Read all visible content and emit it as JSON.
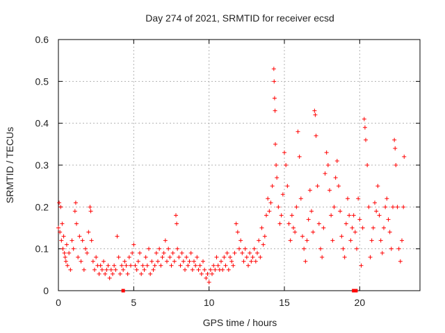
{
  "chart_data": {
    "type": "scatter",
    "title": "Day 274 of 2021, SRMTID for receiver ecsd",
    "xlabel": "GPS time / hours",
    "ylabel": "SRMTID / TECUs",
    "xlim": [
      0,
      24
    ],
    "ylim": [
      0,
      0.6
    ],
    "xticks": [
      0,
      5,
      10,
      15,
      20
    ],
    "yticks": [
      0,
      0.1,
      0.2,
      0.3,
      0.4,
      0.5,
      0.6
    ],
    "grid": true,
    "marker": "plus",
    "series": [
      {
        "name": "SRMTID",
        "color": "#ff0000",
        "points": [
          [
            0.0,
            0.15
          ],
          [
            0.05,
            0.21
          ],
          [
            0.1,
            0.14
          ],
          [
            0.15,
            0.2
          ],
          [
            0.2,
            0.12
          ],
          [
            0.25,
            0.16
          ],
          [
            0.3,
            0.1
          ],
          [
            0.35,
            0.13
          ],
          [
            0.4,
            0.09
          ],
          [
            0.45,
            0.08
          ],
          [
            0.5,
            0.07
          ],
          [
            0.55,
            0.11
          ],
          [
            0.6,
            0.06
          ],
          [
            0.7,
            0.09
          ],
          [
            0.8,
            0.05
          ],
          [
            0.9,
            0.12
          ],
          [
            1.0,
            0.1
          ],
          [
            1.1,
            0.19
          ],
          [
            1.15,
            0.21
          ],
          [
            1.2,
            0.16
          ],
          [
            1.3,
            0.08
          ],
          [
            1.4,
            0.13
          ],
          [
            1.5,
            0.07
          ],
          [
            1.6,
            0.12
          ],
          [
            1.7,
            0.05
          ],
          [
            1.8,
            0.1
          ],
          [
            1.9,
            0.09
          ],
          [
            2.0,
            0.14
          ],
          [
            2.1,
            0.2
          ],
          [
            2.15,
            0.19
          ],
          [
            2.2,
            0.12
          ],
          [
            2.3,
            0.07
          ],
          [
            2.4,
            0.05
          ],
          [
            2.5,
            0.08
          ],
          [
            2.6,
            0.06
          ],
          [
            2.7,
            0.04
          ],
          [
            2.8,
            0.06
          ],
          [
            2.9,
            0.05
          ],
          [
            3.0,
            0.07
          ],
          [
            3.1,
            0.04
          ],
          [
            3.2,
            0.05
          ],
          [
            3.3,
            0.06
          ],
          [
            3.4,
            0.03
          ],
          [
            3.5,
            0.05
          ],
          [
            3.6,
            0.04
          ],
          [
            3.7,
            0.06
          ],
          [
            3.8,
            0.05
          ],
          [
            3.9,
            0.13
          ],
          [
            4.0,
            0.08
          ],
          [
            4.1,
            0.04
          ],
          [
            4.2,
            0.06
          ],
          [
            4.3,
            0.05
          ],
          [
            4.4,
            0.07
          ],
          [
            4.5,
            0.06
          ],
          [
            4.6,
            0.04
          ],
          [
            4.7,
            0.08
          ],
          [
            4.8,
            0.06
          ],
          [
            4.9,
            0.09
          ],
          [
            5.0,
            0.11
          ],
          [
            5.1,
            0.06
          ],
          [
            5.2,
            0.05
          ],
          [
            5.3,
            0.07
          ],
          [
            5.4,
            0.09
          ],
          [
            5.5,
            0.04
          ],
          [
            5.6,
            0.06
          ],
          [
            5.7,
            0.05
          ],
          [
            5.8,
            0.08
          ],
          [
            5.9,
            0.06
          ],
          [
            6.0,
            0.1
          ],
          [
            6.1,
            0.04
          ],
          [
            6.2,
            0.07
          ],
          [
            6.3,
            0.05
          ],
          [
            6.4,
            0.06
          ],
          [
            6.5,
            0.09
          ],
          [
            6.6,
            0.07
          ],
          [
            6.7,
            0.1
          ],
          [
            6.8,
            0.06
          ],
          [
            6.9,
            0.08
          ],
          [
            7.0,
            0.09
          ],
          [
            7.1,
            0.12
          ],
          [
            7.2,
            0.07
          ],
          [
            7.3,
            0.1
          ],
          [
            7.4,
            0.08
          ],
          [
            7.5,
            0.06
          ],
          [
            7.6,
            0.09
          ],
          [
            7.7,
            0.07
          ],
          [
            7.8,
            0.18
          ],
          [
            7.85,
            0.16
          ],
          [
            7.9,
            0.1
          ],
          [
            8.0,
            0.08
          ],
          [
            8.1,
            0.06
          ],
          [
            8.2,
            0.09
          ],
          [
            8.3,
            0.07
          ],
          [
            8.4,
            0.05
          ],
          [
            8.5,
            0.08
          ],
          [
            8.6,
            0.06
          ],
          [
            8.7,
            0.07
          ],
          [
            8.8,
            0.09
          ],
          [
            8.9,
            0.05
          ],
          [
            9.0,
            0.07
          ],
          [
            9.1,
            0.06
          ],
          [
            9.2,
            0.08
          ],
          [
            9.3,
            0.05
          ],
          [
            9.4,
            0.06
          ],
          [
            9.5,
            0.04
          ],
          [
            9.6,
            0.07
          ],
          [
            9.7,
            0.05
          ],
          [
            9.8,
            0.03
          ],
          [
            9.9,
            0.04
          ],
          [
            10.0,
            0.02
          ],
          [
            10.1,
            0.05
          ],
          [
            10.2,
            0.04
          ],
          [
            10.3,
            0.06
          ],
          [
            10.4,
            0.05
          ],
          [
            10.5,
            0.08
          ],
          [
            10.6,
            0.06
          ],
          [
            10.7,
            0.05
          ],
          [
            10.8,
            0.07
          ],
          [
            10.9,
            0.05
          ],
          [
            11.0,
            0.08
          ],
          [
            11.1,
            0.06
          ],
          [
            11.2,
            0.09
          ],
          [
            11.3,
            0.05
          ],
          [
            11.4,
            0.08
          ],
          [
            11.5,
            0.07
          ],
          [
            11.6,
            0.06
          ],
          [
            11.7,
            0.09
          ],
          [
            11.8,
            0.16
          ],
          [
            11.9,
            0.14
          ],
          [
            12.0,
            0.1
          ],
          [
            12.1,
            0.12
          ],
          [
            12.2,
            0.09
          ],
          [
            12.3,
            0.07
          ],
          [
            12.4,
            0.1
          ],
          [
            12.5,
            0.08
          ],
          [
            12.6,
            0.06
          ],
          [
            12.7,
            0.09
          ],
          [
            12.8,
            0.07
          ],
          [
            12.9,
            0.08
          ],
          [
            13.0,
            0.1
          ],
          [
            13.1,
            0.07
          ],
          [
            13.2,
            0.09
          ],
          [
            13.3,
            0.12
          ],
          [
            13.4,
            0.08
          ],
          [
            13.5,
            0.15
          ],
          [
            13.6,
            0.11
          ],
          [
            13.7,
            0.13
          ],
          [
            13.8,
            0.18
          ],
          [
            13.9,
            0.22
          ],
          [
            14.0,
            0.19
          ],
          [
            14.1,
            0.21
          ],
          [
            14.2,
            0.25
          ],
          [
            14.3,
            0.53
          ],
          [
            14.32,
            0.5
          ],
          [
            14.35,
            0.46
          ],
          [
            14.38,
            0.43
          ],
          [
            14.4,
            0.35
          ],
          [
            14.45,
            0.3
          ],
          [
            14.5,
            0.27
          ],
          [
            14.6,
            0.2
          ],
          [
            14.7,
            0.16
          ],
          [
            14.8,
            0.18
          ],
          [
            14.9,
            0.23
          ],
          [
            15.0,
            0.33
          ],
          [
            15.1,
            0.3
          ],
          [
            15.2,
            0.25
          ],
          [
            15.3,
            0.16
          ],
          [
            15.4,
            0.12
          ],
          [
            15.5,
            0.18
          ],
          [
            15.6,
            0.15
          ],
          [
            15.7,
            0.14
          ],
          [
            15.8,
            0.2
          ],
          [
            15.9,
            0.38
          ],
          [
            16.0,
            0.32
          ],
          [
            16.1,
            0.22
          ],
          [
            16.2,
            0.13
          ],
          [
            16.3,
            0.1
          ],
          [
            16.4,
            0.07
          ],
          [
            16.5,
            0.12
          ],
          [
            16.6,
            0.17
          ],
          [
            16.7,
            0.24
          ],
          [
            16.8,
            0.19
          ],
          [
            16.9,
            0.14
          ],
          [
            17.0,
            0.43
          ],
          [
            17.05,
            0.42
          ],
          [
            17.1,
            0.37
          ],
          [
            17.2,
            0.25
          ],
          [
            17.3,
            0.16
          ],
          [
            17.4,
            0.1
          ],
          [
            17.5,
            0.08
          ],
          [
            17.6,
            0.15
          ],
          [
            17.7,
            0.28
          ],
          [
            17.8,
            0.33
          ],
          [
            17.9,
            0.3
          ],
          [
            18.0,
            0.24
          ],
          [
            18.1,
            0.18
          ],
          [
            18.2,
            0.12
          ],
          [
            18.3,
            0.2
          ],
          [
            18.4,
            0.27
          ],
          [
            18.5,
            0.31
          ],
          [
            18.6,
            0.25
          ],
          [
            18.7,
            0.19
          ],
          [
            18.8,
            0.13
          ],
          [
            18.9,
            0.1
          ],
          [
            19.0,
            0.08
          ],
          [
            19.1,
            0.16
          ],
          [
            19.2,
            0.22
          ],
          [
            19.3,
            0.18
          ],
          [
            19.4,
            0.12
          ],
          [
            19.5,
            0.15
          ],
          [
            19.6,
            0.18
          ],
          [
            19.7,
            0.14
          ],
          [
            19.8,
            0.1
          ],
          [
            19.9,
            0.22
          ],
          [
            20.0,
            0.17
          ],
          [
            20.1,
            0.06
          ],
          [
            20.2,
            0.15
          ],
          [
            20.3,
            0.41
          ],
          [
            20.35,
            0.39
          ],
          [
            20.4,
            0.36
          ],
          [
            20.5,
            0.3
          ],
          [
            20.6,
            0.2
          ],
          [
            20.7,
            0.08
          ],
          [
            20.8,
            0.12
          ],
          [
            20.9,
            0.15
          ],
          [
            21.0,
            0.21
          ],
          [
            21.1,
            0.19
          ],
          [
            21.2,
            0.25
          ],
          [
            21.3,
            0.18
          ],
          [
            21.4,
            0.12
          ],
          [
            21.5,
            0.09
          ],
          [
            21.6,
            0.15
          ],
          [
            21.7,
            0.2
          ],
          [
            21.8,
            0.22
          ],
          [
            21.9,
            0.17
          ],
          [
            22.0,
            0.14
          ],
          [
            22.1,
            0.1
          ],
          [
            22.2,
            0.2
          ],
          [
            22.3,
            0.36
          ],
          [
            22.35,
            0.34
          ],
          [
            22.4,
            0.3
          ],
          [
            22.5,
            0.2
          ],
          [
            22.6,
            0.1
          ],
          [
            22.7,
            0.07
          ],
          [
            22.8,
            0.12
          ],
          [
            22.9,
            0.2
          ],
          [
            22.95,
            0.32
          ]
        ]
      }
    ],
    "gap_markers_x": [
      4.3,
      19.6,
      19.75
    ]
  }
}
